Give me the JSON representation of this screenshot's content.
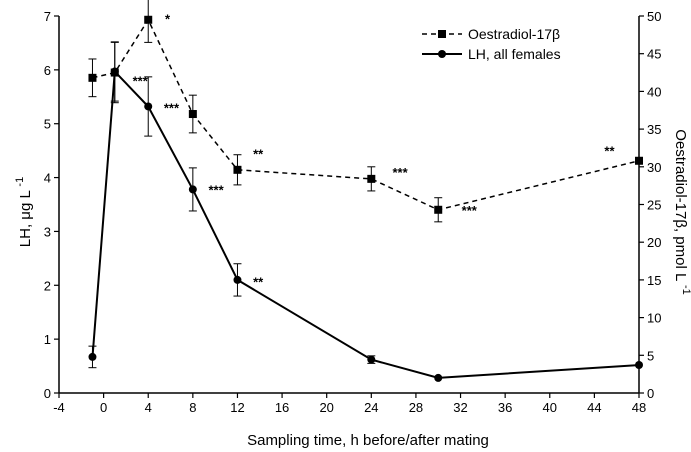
{
  "chart_data": {
    "type": "line",
    "title": "",
    "xlabel": "Sampling time, h before/after mating",
    "ylabel_left": {
      "main": "LH, μg L",
      "sup": "-1"
    },
    "ylabel_right": {
      "main": "Oestradiol-17β, pmol L",
      "sup": "-1"
    },
    "xlim": [
      -4,
      48
    ],
    "xticks": [
      -4,
      0,
      4,
      8,
      12,
      16,
      20,
      24,
      28,
      32,
      36,
      40,
      44,
      48
    ],
    "ylim_left": [
      0,
      7
    ],
    "yticks_left": [
      0,
      1,
      2,
      3,
      4,
      5,
      6,
      7
    ],
    "ylim_right": [
      0,
      50
    ],
    "yticks_right": [
      0,
      5,
      10,
      15,
      20,
      25,
      30,
      35,
      40,
      45,
      50
    ],
    "grid": false,
    "legend": "top-right",
    "series": [
      {
        "name": "Oestradiol-17β",
        "axis": "right",
        "style": "dashed",
        "marker": "square",
        "x": [
          -1,
          1,
          4,
          8,
          12,
          24,
          30,
          48
        ],
        "y": [
          41.8,
          42.5,
          49.5,
          37.0,
          29.6,
          28.4,
          24.3,
          30.8
        ],
        "err": [
          2.5,
          4.0,
          3.0,
          2.5,
          2.0,
          1.6,
          1.6,
          0
        ]
      },
      {
        "name": "LH, all females",
        "axis": "left",
        "style": "solid",
        "marker": "circle",
        "x": [
          -1,
          1,
          4,
          8,
          12,
          24,
          30,
          48
        ],
        "y": [
          0.67,
          5.97,
          5.32,
          3.78,
          2.1,
          0.62,
          0.28,
          0.52
        ],
        "err": [
          0.2,
          0.55,
          0.55,
          0.4,
          0.3,
          0.07,
          0,
          0
        ]
      }
    ],
    "annotations": [
      {
        "text": "*",
        "x": 5.5,
        "y": 6.95
      },
      {
        "text": "***",
        "x": 2.6,
        "y": 5.8
      },
      {
        "text": "***",
        "x": 5.4,
        "y": 5.3
      },
      {
        "text": "***",
        "x": 9.4,
        "y": 3.78
      },
      {
        "text": "**",
        "x": 13.4,
        "y": 4.45
      },
      {
        "text": "**",
        "x": 13.4,
        "y": 2.07
      },
      {
        "text": "***",
        "x": 25.9,
        "y": 4.1
      },
      {
        "text": "***",
        "x": 32.1,
        "y": 3.4
      },
      {
        "text": "**",
        "x": 44.9,
        "y": 4.5
      }
    ]
  }
}
